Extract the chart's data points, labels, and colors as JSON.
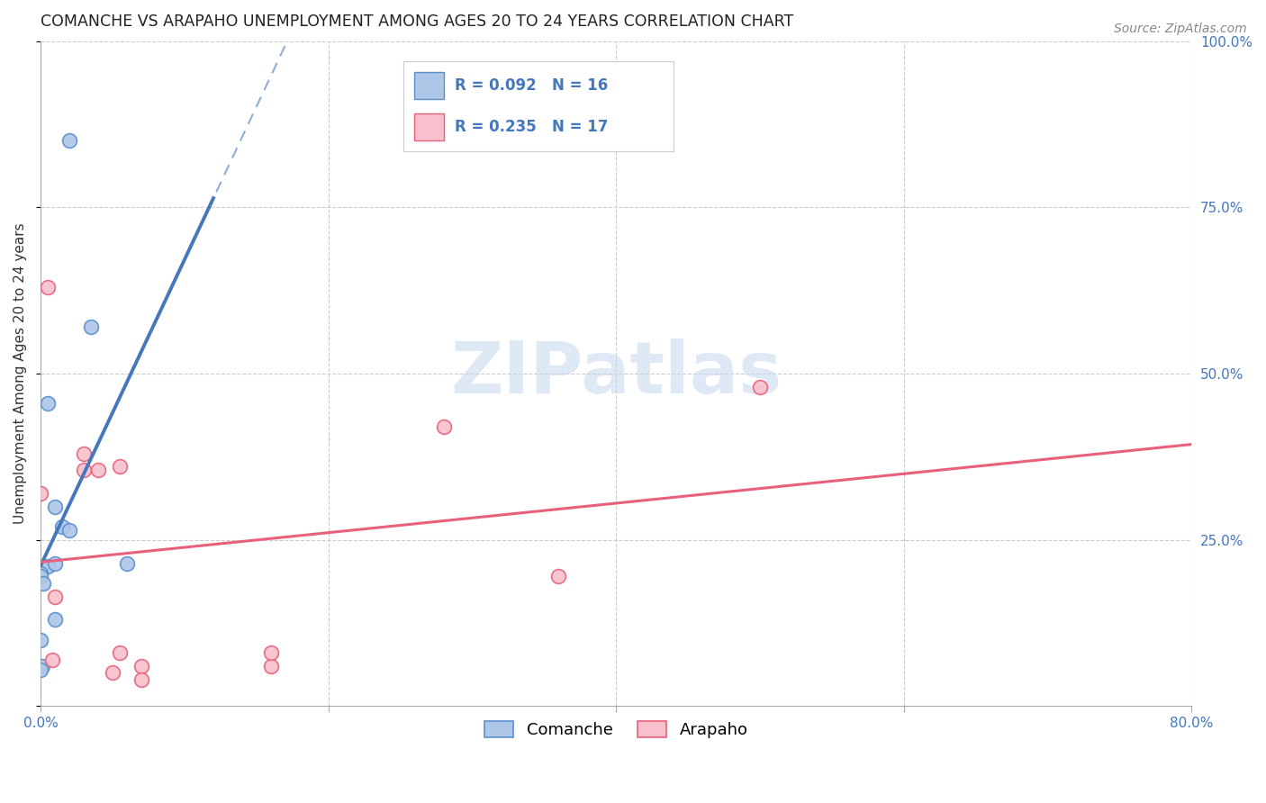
{
  "title": "COMANCHE VS ARAPAHO UNEMPLOYMENT AMONG AGES 20 TO 24 YEARS CORRELATION CHART",
  "source": "Source: ZipAtlas.com",
  "ylabel": "Unemployment Among Ages 20 to 24 years",
  "xlim": [
    0.0,
    0.8
  ],
  "ylim": [
    0.0,
    1.0
  ],
  "watermark_zip": "ZIP",
  "watermark_atlas": "atlas",
  "background_color": "#ffffff",
  "grid_color": "#cccccc",
  "comanche_color": "#aec6e8",
  "comanche_edge_color": "#5b8fcc",
  "arapaho_color": "#f7c0cc",
  "arapaho_edge_color": "#e8607a",
  "comanche_line_color": "#4477bb",
  "arapaho_line_color": "#e8607a",
  "comanche_R": 0.092,
  "comanche_N": 16,
  "arapaho_R": 0.235,
  "arapaho_N": 17,
  "comanche_scatter_x": [
    0.02,
    0.035,
    0.005,
    0.01,
    0.015,
    0.02,
    0.005,
    0.0,
    0.0,
    0.002,
    0.01,
    0.06,
    0.01,
    0.0,
    0.001,
    0.0
  ],
  "comanche_scatter_y": [
    0.85,
    0.57,
    0.455,
    0.3,
    0.27,
    0.265,
    0.21,
    0.2,
    0.195,
    0.185,
    0.215,
    0.215,
    0.13,
    0.1,
    0.06,
    0.055
  ],
  "arapaho_scatter_x": [
    0.005,
    0.03,
    0.03,
    0.04,
    0.0,
    0.01,
    0.055,
    0.008,
    0.28,
    0.36,
    0.5,
    0.16,
    0.16,
    0.055,
    0.05,
    0.07,
    0.07
  ],
  "arapaho_scatter_y": [
    0.63,
    0.38,
    0.355,
    0.355,
    0.32,
    0.165,
    0.36,
    0.07,
    0.42,
    0.195,
    0.48,
    0.06,
    0.08,
    0.08,
    0.05,
    0.06,
    0.04
  ],
  "marker_size": 130,
  "title_fontsize": 12.5,
  "axis_label_fontsize": 11,
  "tick_fontsize": 11,
  "source_fontsize": 10,
  "right_ytick_color": "#4477bb",
  "comanche_trendline_xlim": [
    0.0,
    0.12
  ],
  "arapaho_trendline_xlim": [
    0.0,
    0.8
  ],
  "dashed_trendline_xlim": [
    0.0,
    0.8
  ]
}
